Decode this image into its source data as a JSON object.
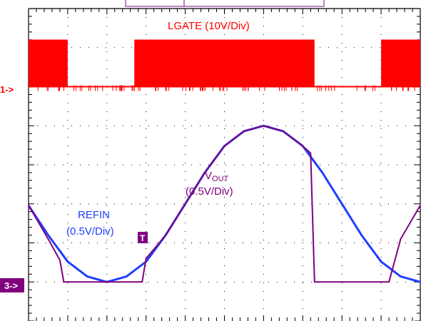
{
  "chart_data": {
    "type": "line",
    "title": "",
    "xlabel": "",
    "ylabel": "",
    "grid": true,
    "grid_style": "dotted",
    "x_divisions": 10,
    "y_divisions": 8,
    "colors": {
      "lgate": "#ff0000",
      "refin": "#1f3fff",
      "vout": "#800080",
      "grid": "#000000",
      "ch1_marker": "#ff0000",
      "ch3_marker": "#800080"
    },
    "channel_markers": [
      {
        "label": "1->",
        "color": "#ff0000"
      },
      {
        "label": "3->",
        "color": "#800080"
      }
    ],
    "trigger_marker": {
      "label": "T",
      "color": "#800080"
    },
    "annotations": [
      {
        "name": "lgate",
        "text": "LGATE (10V/Div)"
      },
      {
        "name": "vout",
        "base": "V",
        "sub": "OUT",
        "scale": "(0.5V/Div)"
      },
      {
        "name": "refin",
        "text": "REFIN",
        "scale": "(0.5V/Div)"
      }
    ],
    "series": [
      {
        "name": "LGATE",
        "x_unit": "div",
        "y_unit": "div",
        "switching_high_intervals": [
          [
            0.0,
            1.0
          ],
          [
            2.7,
            7.3
          ],
          [
            9.0,
            10.0
          ]
        ]
      },
      {
        "name": "REFIN",
        "x_unit": "div",
        "y_unit": "V",
        "x": [
          0.0,
          0.5,
          1.0,
          1.5,
          2.0,
          2.5,
          3.0,
          3.5,
          4.0,
          4.5,
          5.0,
          5.5,
          6.0,
          6.5,
          7.0,
          7.5,
          8.0,
          8.5,
          9.0,
          9.5,
          10.0
        ],
        "values": [
          0.98,
          0.6,
          0.26,
          0.07,
          0.0,
          0.07,
          0.26,
          0.6,
          1.0,
          1.4,
          1.74,
          1.93,
          2.0,
          1.93,
          1.74,
          1.4,
          1.0,
          0.6,
          0.26,
          0.07,
          0.0
        ]
      },
      {
        "name": "VOUT",
        "x_unit": "div",
        "y_unit": "V",
        "x": [
          0.0,
          0.5,
          0.8,
          0.9,
          1.0,
          1.5,
          2.0,
          2.5,
          2.9,
          3.0,
          3.5,
          4.0,
          4.5,
          5.0,
          5.5,
          6.0,
          6.5,
          7.0,
          7.2,
          7.3,
          7.5,
          8.0,
          8.5,
          9.0,
          9.2,
          9.5,
          10.0
        ],
        "values": [
          0.98,
          0.55,
          0.28,
          0.0,
          0.0,
          0.0,
          0.0,
          0.0,
          0.0,
          0.3,
          0.6,
          1.0,
          1.4,
          1.74,
          1.93,
          2.0,
          1.93,
          1.74,
          1.65,
          0.0,
          0.0,
          0.0,
          0.0,
          0.0,
          0.0,
          0.55,
          0.98
        ]
      }
    ]
  }
}
